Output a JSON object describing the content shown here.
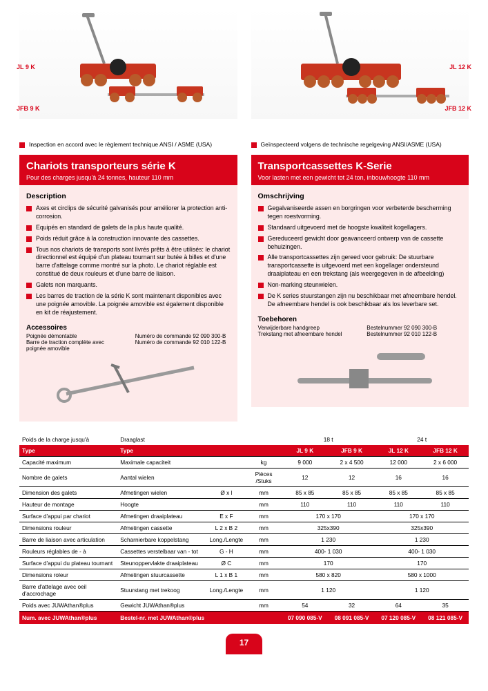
{
  "hero": {
    "left": {
      "label_top": "JL 9 K",
      "label_bottom": "JFB 9 K"
    },
    "right": {
      "label_top": "JL 12 K",
      "label_bottom": "JFB 12 K"
    }
  },
  "inspect": {
    "left": "Inspection en accord avec le règlement technique  ANSI / ASME (USA)",
    "right": "Geïnspecteerd volgens de technische regelgeving ANSI/ASME (USA)"
  },
  "left": {
    "title": "Chariots transporteurs série K",
    "subtitle": "Pour des charges jusqu'à 24 tonnes, hauteur 110 mm",
    "section": "Description",
    "bullets": [
      "Axes et circlips de sécurité galvanisés pour améliorer la protection anti-corrosion.",
      "Equipés en standard de galets de la plus haute qualité.",
      "Poids réduit grâce à la construction innovante des cassettes.",
      "Tous nos chariots de transports sont livrés prêts à être utilisés: le chariot directionnel est équipé d'un plateau tournant sur butée à billes et d'une barre d'attelage comme montré sur la photo. Le chariot réglable est constitué de deux rouleurs et d'une barre de liaison.",
      "Galets non marquants.",
      "Les barres de traction de la série K sont maintenant disponibles avec une poignée amovible.  La poignée amovible est également disponible en kit de réajustement."
    ],
    "acc_title": "Accessoires",
    "acc": {
      "col1a": "Poignée démontable",
      "col1b": "Barre de traction complète avec poignée amovible",
      "col2a": "Numéro de commande 92 090 300-B",
      "col2b": "Numéro de commande 92 010 122-B"
    }
  },
  "right": {
    "title": "Transportcassettes K-Serie",
    "subtitle": "Voor lasten met een gewicht tot 24 ton, inbouwhoogte 110 mm",
    "section": "Omschrijving",
    "bullets": [
      "Gegalvaniseerde assen en borgringen voor verbeterde bescherming tegen roestvorming.",
      "Standaard uitgevoerd met de hoogste kwaliteit kogellagers.",
      "Gereduceerd gewicht door geavanceerd ontwerp van de cassette behuizingen.",
      "Alle transportcassettes zijn gereed voor gebruik: De stuurbare transportcassette is uitgevoerd met een kogellager ondersteund draaiplateau en een trekstang (als weergegeven in de afbeelding)",
      "Non-marking steunwielen.",
      "De K series stuurstangen zijn nu beschikbaar met afneembare hendel. De afneembare hendel is ook beschikbaar als los leverbare set."
    ],
    "acc_title": "Toebehoren",
    "acc": {
      "col1a": "Verwijderbare handgreep",
      "col1b": "Trekstang met afneembare hendel",
      "col2a": "Bestelnummer 92 090 300-B",
      "col2b": "Bestelnummer 92 010 122-B"
    }
  },
  "table": {
    "group_header": {
      "c1": "Poids de la charge jusqu'à",
      "c2": "Draaglast",
      "g1": "18 t",
      "g2": "24 t"
    },
    "type_row": {
      "c1": "Type",
      "c2": "Type",
      "v1": "JL 9 K",
      "v2": "JFB 9 K",
      "v3": "JL 12 K",
      "v4": "JFB 12 K"
    },
    "rows": [
      {
        "c1": "Capacité maximum",
        "c2": "Maximale capaciteit",
        "c3": "",
        "u": "kg",
        "v1": "9 000",
        "v2": "2 x 4 500",
        "v3": "12 000",
        "v4": "2 x 6 000"
      },
      {
        "c1": "Nombre de galets",
        "c2": "Aantal wielen",
        "c3": "",
        "u": "Pièces /Stuks",
        "v1": "12",
        "v2": "12",
        "v3": "16",
        "v4": "16"
      },
      {
        "c1": "Dimension des galets",
        "c2": "Afmetingen wielen",
        "c3": "Ø x l",
        "u": "mm",
        "v1": "85 x 85",
        "v2": "85 x 85",
        "v3": "85 x 85",
        "v4": "85 x 85"
      },
      {
        "c1": "Hauteur de montage",
        "c2": "Hoogte",
        "c3": "",
        "u": "mm",
        "v1": "110",
        "v2": "110",
        "v3": "110",
        "v4": "110"
      },
      {
        "c1": "Surface d'appui par chariot",
        "c2": "Afmetingen draaiplateau",
        "c3": "E x F",
        "u": "mm",
        "v1": "",
        "v2": "170 x 170",
        "v3": "",
        "v4": "170 x 170",
        "span12": true,
        "span34": true
      },
      {
        "c1": "Dimensions rouleur",
        "c2": "Afmetingen cassette",
        "c3": "L 2 x B 2",
        "u": "mm",
        "v1": "",
        "v2": "325x390",
        "v3": "",
        "v4": "325x390",
        "span12": true,
        "span34": true
      },
      {
        "c1": "Barre de liaison avec articulation",
        "c2": "Scharnierbare koppelstang",
        "c3": "Long./Lengte",
        "u": "mm",
        "v1": "",
        "v2": "1 230",
        "v3": "",
        "v4": "1 230",
        "span12": true,
        "span34": true
      },
      {
        "c1": "Rouleurs réglables de - à",
        "c2": "Cassettes verstelbaar van - tot",
        "c3": "G - H",
        "u": "mm",
        "v1": "",
        "v2": "400- 1 030",
        "v3": "",
        "v4": "400- 1 030",
        "span12": true,
        "span34": true
      },
      {
        "c1": "Surface d'appui du plateau tournant",
        "c2": "Steunoppervlakte draaiplateau",
        "c3": "Ø C",
        "u": "mm",
        "v1": "170",
        "v2": "",
        "v3": "170",
        "v4": "",
        "span12": true,
        "span34": true
      },
      {
        "c1": "Dimensions roleur",
        "c2": "Afmetingen stuurcassette",
        "c3": "L 1 x B 1",
        "u": "mm",
        "v1": "580 x 820",
        "v2": "",
        "v3": "580 x 1000",
        "v4": "",
        "span12": true,
        "span34": true
      },
      {
        "c1": "Barre d'attelage avec oeil d'accrochage",
        "c2": "Stuurstang met trekoog",
        "c3": "Long./Lengte",
        "u": "mm",
        "v1": "1 120",
        "v2": "",
        "v3": "1 120",
        "v4": "",
        "span12": true,
        "span34": true
      },
      {
        "c1": "Poids avec JUWAthan®plus",
        "c2": "Gewicht JUWAthan®plus",
        "c3": "",
        "u": "mm",
        "v1": "54",
        "v2": "32",
        "v3": "64",
        "v4": "35"
      }
    ],
    "footer": {
      "c1": "Num. avec JUWAthan®plus",
      "c2": "Bestel-nr. met JUWAthan®plus",
      "v1": "07 090 085-V",
      "v2": "08 091 085-V",
      "v3": "07 120 085-V",
      "v4": "08 121 085-V"
    }
  },
  "page_number": "17",
  "colors": {
    "red": "#d8041a",
    "pink": "#fdeaea"
  }
}
